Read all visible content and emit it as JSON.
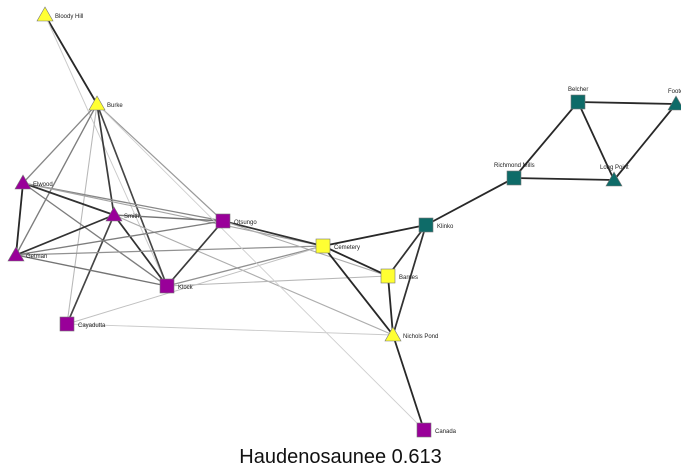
{
  "caption": "Haudenosaunee 0.613",
  "palette": {
    "yellow": "#ffff33",
    "purple": "#990099",
    "teal": "#0e6b68",
    "edge": "#333333",
    "node_stroke": "#777777"
  },
  "nodes": [
    {
      "id": "bloody-hill",
      "label": "Bloody Hill",
      "shape": "triangle",
      "color": "yellow"
    },
    {
      "id": "burke",
      "label": "Burke",
      "shape": "triangle",
      "color": "yellow"
    },
    {
      "id": "elwood",
      "label": "Elwood",
      "shape": "triangle",
      "color": "purple"
    },
    {
      "id": "smith",
      "label": "Smith",
      "shape": "triangle",
      "color": "purple"
    },
    {
      "id": "getman",
      "label": "Getman",
      "shape": "triangle",
      "color": "purple"
    },
    {
      "id": "otsungo",
      "label": "Otsungo",
      "shape": "square",
      "color": "purple"
    },
    {
      "id": "klock",
      "label": "Klock",
      "shape": "square",
      "color": "purple"
    },
    {
      "id": "cayadutta",
      "label": "Cayadutta",
      "shape": "square",
      "color": "purple"
    },
    {
      "id": "cemetery",
      "label": "Cemetery",
      "shape": "square",
      "color": "yellow"
    },
    {
      "id": "barnes",
      "label": "Barnes",
      "shape": "square",
      "color": "yellow"
    },
    {
      "id": "nichols-pond",
      "label": "Nichols Pond",
      "shape": "triangle",
      "color": "yellow"
    },
    {
      "id": "canada",
      "label": "Canada",
      "shape": "square",
      "color": "purple"
    },
    {
      "id": "klinko",
      "label": "Klinko",
      "shape": "square",
      "color": "teal"
    },
    {
      "id": "richmond-mills",
      "label": "Richmond Mills",
      "shape": "square",
      "color": "teal"
    },
    {
      "id": "belcher",
      "label": "Belcher",
      "shape": "square",
      "color": "teal"
    },
    {
      "id": "long-point",
      "label": "Long Point",
      "shape": "triangle",
      "color": "teal"
    },
    {
      "id": "footer",
      "label": "Footer",
      "shape": "triangle",
      "color": "teal"
    }
  ],
  "edges": [
    {
      "from": "bloody-hill",
      "to": "burke",
      "weight": 1.0
    },
    {
      "from": "bloody-hill",
      "to": "klock",
      "weight": 0.15
    },
    {
      "from": "burke",
      "to": "smith",
      "weight": 0.9
    },
    {
      "from": "burke",
      "to": "klock",
      "weight": 0.85
    },
    {
      "from": "burke",
      "to": "elwood",
      "weight": 0.5
    },
    {
      "from": "burke",
      "to": "getman",
      "weight": 0.55
    },
    {
      "from": "burke",
      "to": "otsungo",
      "weight": 0.4
    },
    {
      "from": "burke",
      "to": "cayadutta",
      "weight": 0.25
    },
    {
      "from": "elwood",
      "to": "smith",
      "weight": 0.95
    },
    {
      "from": "elwood",
      "to": "getman",
      "weight": 1.0
    },
    {
      "from": "elwood",
      "to": "klock",
      "weight": 0.55
    },
    {
      "from": "elwood",
      "to": "otsungo",
      "weight": 0.5
    },
    {
      "from": "elwood",
      "to": "cemetery",
      "weight": 0.35
    },
    {
      "from": "smith",
      "to": "getman",
      "weight": 0.95
    },
    {
      "from": "smith",
      "to": "otsungo",
      "weight": 0.6
    },
    {
      "from": "smith",
      "to": "klock",
      "weight": 0.95
    },
    {
      "from": "smith",
      "to": "cayadutta",
      "weight": 0.85
    },
    {
      "from": "smith",
      "to": "nichols-pond",
      "weight": 0.3
    },
    {
      "from": "getman",
      "to": "otsungo",
      "weight": 0.55
    },
    {
      "from": "getman",
      "to": "klock",
      "weight": 0.6
    },
    {
      "from": "getman",
      "to": "cemetery",
      "weight": 0.45
    },
    {
      "from": "otsungo",
      "to": "klock",
      "weight": 0.9
    },
    {
      "from": "otsungo",
      "to": "cemetery",
      "weight": 0.95
    },
    {
      "from": "otsungo",
      "to": "barnes",
      "weight": 0.3
    },
    {
      "from": "klock",
      "to": "cemetery",
      "weight": 0.45
    },
    {
      "from": "klock",
      "to": "barnes",
      "weight": 0.25
    },
    {
      "from": "cayadutta",
      "to": "cemetery",
      "weight": 0.2
    },
    {
      "from": "cayadutta",
      "to": "nichols-pond",
      "weight": 0.15
    },
    {
      "from": "cemetery",
      "to": "klinko",
      "weight": 1.0
    },
    {
      "from": "cemetery",
      "to": "barnes",
      "weight": 1.0
    },
    {
      "from": "cemetery",
      "to": "nichols-pond",
      "weight": 1.0
    },
    {
      "from": "barnes",
      "to": "klinko",
      "weight": 0.95
    },
    {
      "from": "barnes",
      "to": "nichols-pond",
      "weight": 1.0
    },
    {
      "from": "nichols-pond",
      "to": "klinko",
      "weight": 0.95
    },
    {
      "from": "nichols-pond",
      "to": "canada",
      "weight": 1.0
    },
    {
      "from": "canada",
      "to": "burke",
      "weight": 0.12
    },
    {
      "from": "klinko",
      "to": "richmond-mills",
      "weight": 1.0
    },
    {
      "from": "richmond-mills",
      "to": "belcher",
      "weight": 1.0
    },
    {
      "from": "richmond-mills",
      "to": "long-point",
      "weight": 1.0
    },
    {
      "from": "belcher",
      "to": "long-point",
      "weight": 1.0
    },
    {
      "from": "belcher",
      "to": "footer",
      "weight": 1.0
    },
    {
      "from": "long-point",
      "to": "footer",
      "weight": 1.0
    }
  ]
}
